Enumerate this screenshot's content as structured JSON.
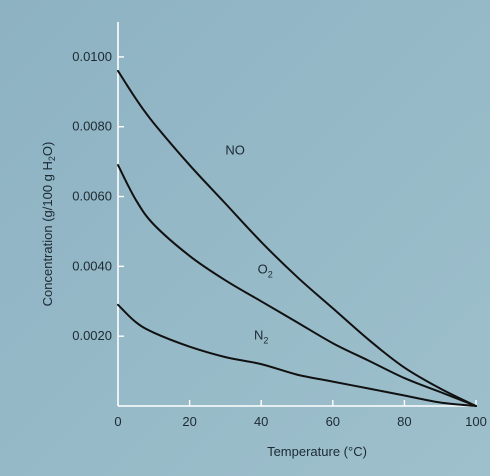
{
  "chart_data": {
    "type": "line",
    "title": "",
    "xlabel": "Temperature (°C)",
    "ylabel_parts": [
      "Concentration (g/100 g H",
      "2",
      "O)"
    ],
    "xlim": [
      0,
      100
    ],
    "ylim": [
      0,
      0.011
    ],
    "x_ticks": [
      0,
      20,
      40,
      60,
      80,
      100
    ],
    "x_tick_labels": [
      "0",
      "20",
      "40",
      "60",
      "80",
      "100"
    ],
    "y_ticks": [
      0.002,
      0.004,
      0.006,
      0.008,
      0.01
    ],
    "y_tick_labels": [
      "0.0020",
      "0.0040",
      "0.0060",
      "0.0080",
      "0.0100"
    ],
    "grid": false,
    "series": [
      {
        "name": "NO",
        "label_main": "NO",
        "label_sub": "",
        "color": "#111111",
        "x": [
          0,
          5,
          10,
          20,
          30,
          40,
          50,
          60,
          70,
          80,
          90,
          100
        ],
        "y": [
          0.0096,
          0.0088,
          0.0081,
          0.0069,
          0.0058,
          0.0047,
          0.0037,
          0.0028,
          0.0019,
          0.0011,
          0.0005,
          0.0
        ]
      },
      {
        "name": "O2",
        "label_main": "O",
        "label_sub": "2",
        "color": "#111111",
        "x": [
          0,
          5,
          10,
          20,
          30,
          40,
          50,
          60,
          70,
          80,
          90,
          100
        ],
        "y": [
          0.0069,
          0.0059,
          0.0052,
          0.0043,
          0.0036,
          0.003,
          0.0024,
          0.0018,
          0.0013,
          0.0008,
          0.0004,
          0.0
        ]
      },
      {
        "name": "N2",
        "label_main": "N",
        "label_sub": "2",
        "color": "#111111",
        "x": [
          0,
          5,
          10,
          20,
          30,
          40,
          50,
          60,
          70,
          80,
          90,
          100
        ],
        "y": [
          0.0029,
          0.0024,
          0.0021,
          0.0017,
          0.0014,
          0.0012,
          0.0009,
          0.0007,
          0.0005,
          0.0003,
          0.0001,
          0.0
        ]
      }
    ]
  }
}
